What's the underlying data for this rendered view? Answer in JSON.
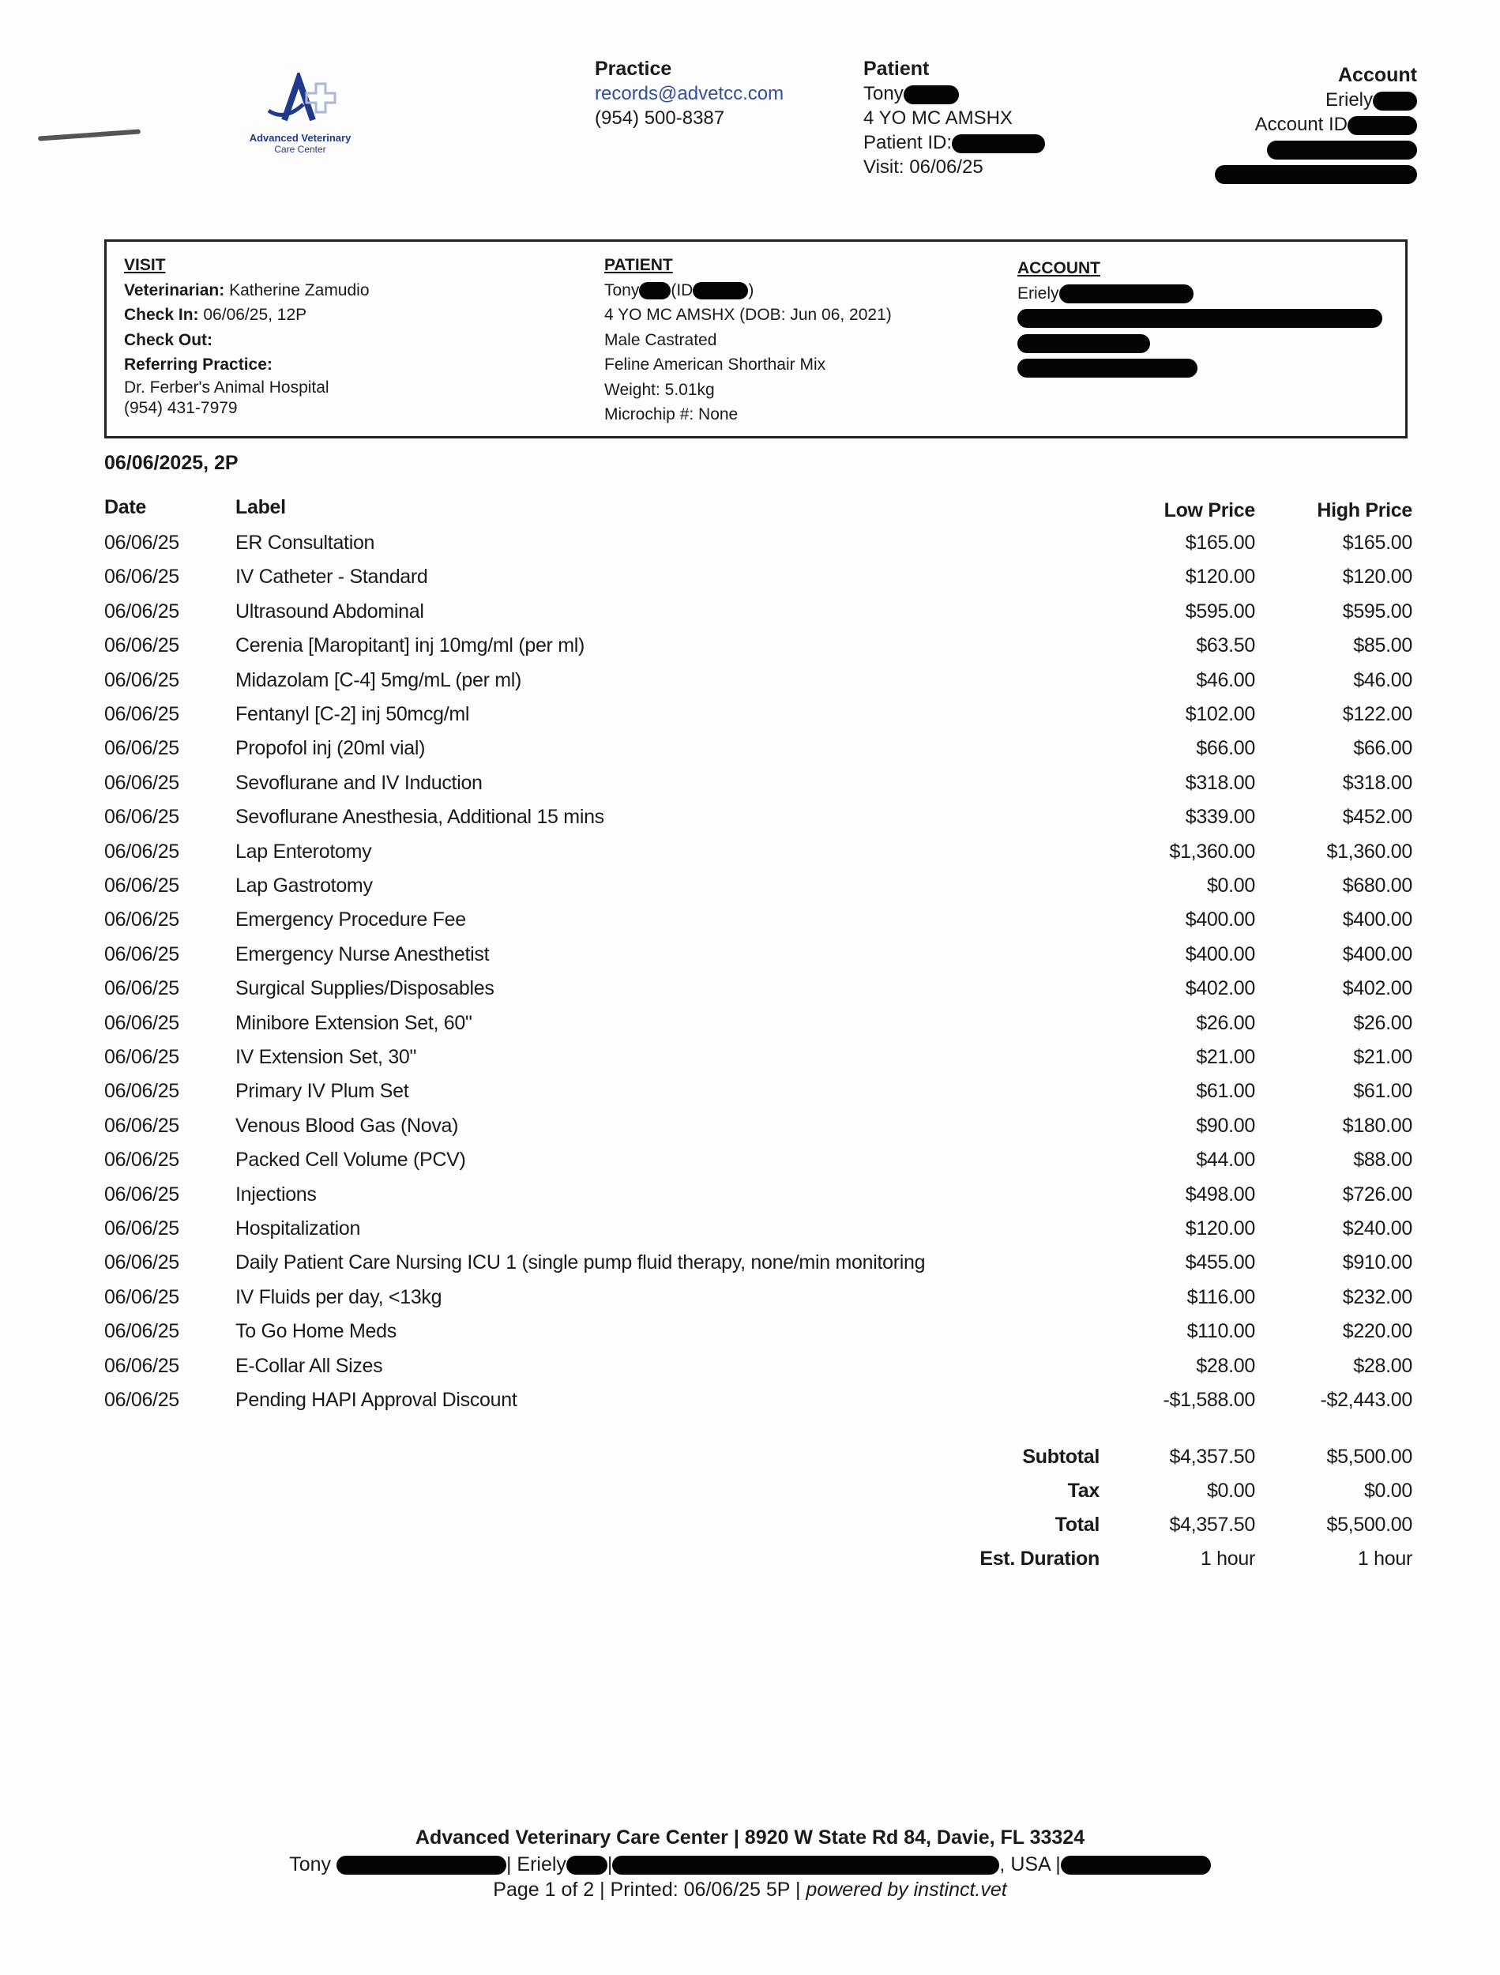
{
  "logo": {
    "name_line1": "Advanced Veterinary",
    "name_line2": "Care Center",
    "colors": {
      "primary": "#1f3a8a",
      "cross": "#a9b8d8"
    }
  },
  "header": {
    "practice": {
      "title": "Practice",
      "email": "records@advetcc.com",
      "phone": "(954) 500-8387"
    },
    "patient": {
      "title": "Patient",
      "name": "Tony",
      "summary": "4 YO MC AMSHX",
      "id_label": "Patient ID:",
      "visit": "Visit: 06/06/25"
    },
    "account": {
      "title": "Account",
      "name": "Eriely",
      "id_label": "Account ID"
    }
  },
  "info_box": {
    "visit": {
      "heading": "VISIT",
      "vet_label": "Veterinarian:",
      "vet": "Katherine Zamudio",
      "checkin_label": "Check In:",
      "checkin": "06/06/25, 12P",
      "checkout_label": "Check Out:",
      "referring_label": "Referring Practice:",
      "referring_name": "Dr. Ferber's Animal Hospital",
      "referring_phone": "(954) 431-7979"
    },
    "patient": {
      "heading": "PATIENT",
      "name": "Tony",
      "id_open": "(ID",
      "id_close": ")",
      "summary": "4 YO MC AMSHX (DOB: Jun 06, 2021)",
      "sex": "Male Castrated",
      "breed": "Feline American Shorthair Mix",
      "weight": "Weight: 5.01kg",
      "microchip": "Microchip #: None"
    },
    "account": {
      "heading": "ACCOUNT",
      "name": "Eriely"
    }
  },
  "estimate": {
    "date_heading": "06/06/2025, 2P",
    "columns": {
      "date": "Date",
      "label": "Label",
      "low": "Low Price",
      "high": "High Price"
    },
    "items": [
      {
        "date": "06/06/25",
        "label": "ER Consultation",
        "low": "$165.00",
        "high": "$165.00"
      },
      {
        "date": "06/06/25",
        "label": "IV Catheter - Standard",
        "low": "$120.00",
        "high": "$120.00"
      },
      {
        "date": "06/06/25",
        "label": "Ultrasound Abdominal",
        "low": "$595.00",
        "high": "$595.00"
      },
      {
        "date": "06/06/25",
        "label": "Cerenia [Maropitant] inj 10mg/ml (per ml)",
        "low": "$63.50",
        "high": "$85.00"
      },
      {
        "date": "06/06/25",
        "label": "Midazolam [C-4] 5mg/mL (per ml)",
        "low": "$46.00",
        "high": "$46.00"
      },
      {
        "date": "06/06/25",
        "label": "Fentanyl [C-2] inj 50mcg/ml",
        "low": "$102.00",
        "high": "$122.00"
      },
      {
        "date": "06/06/25",
        "label": "Propofol inj (20ml vial)",
        "low": "$66.00",
        "high": "$66.00"
      },
      {
        "date": "06/06/25",
        "label": "Sevoflurane and IV Induction",
        "low": "$318.00",
        "high": "$318.00"
      },
      {
        "date": "06/06/25",
        "label": "Sevoflurane Anesthesia, Additional 15 mins",
        "low": "$339.00",
        "high": "$452.00"
      },
      {
        "date": "06/06/25",
        "label": "Lap Enterotomy",
        "low": "$1,360.00",
        "high": "$1,360.00"
      },
      {
        "date": "06/06/25",
        "label": "Lap Gastrotomy",
        "low": "$0.00",
        "high": "$680.00"
      },
      {
        "date": "06/06/25",
        "label": "Emergency Procedure Fee",
        "low": "$400.00",
        "high": "$400.00"
      },
      {
        "date": "06/06/25",
        "label": "Emergency Nurse Anesthetist",
        "low": "$400.00",
        "high": "$400.00"
      },
      {
        "date": "06/06/25",
        "label": "Surgical Supplies/Disposables",
        "low": "$402.00",
        "high": "$402.00"
      },
      {
        "date": "06/06/25",
        "label": "Minibore Extension Set, 60\"",
        "low": "$26.00",
        "high": "$26.00"
      },
      {
        "date": "06/06/25",
        "label": "IV Extension Set, 30\"",
        "low": "$21.00",
        "high": "$21.00"
      },
      {
        "date": "06/06/25",
        "label": "Primary IV Plum Set",
        "low": "$61.00",
        "high": "$61.00"
      },
      {
        "date": "06/06/25",
        "label": "Venous Blood Gas (Nova)",
        "low": "$90.00",
        "high": "$180.00"
      },
      {
        "date": "06/06/25",
        "label": "Packed Cell Volume (PCV)",
        "low": "$44.00",
        "high": "$88.00"
      },
      {
        "date": "06/06/25",
        "label": "Injections",
        "low": "$498.00",
        "high": "$726.00"
      },
      {
        "date": "06/06/25",
        "label": "Hospitalization",
        "low": "$120.00",
        "high": "$240.00"
      },
      {
        "date": "06/06/25",
        "label": "Daily Patient Care Nursing ICU 1 (single pump fluid therapy, none/min monitoring",
        "low": "$455.00",
        "high": "$910.00"
      },
      {
        "date": "06/06/25",
        "label": "IV Fluids per day, <13kg",
        "low": "$116.00",
        "high": "$232.00"
      },
      {
        "date": "06/06/25",
        "label": "To Go Home Meds",
        "low": "$110.00",
        "high": "$220.00"
      },
      {
        "date": "06/06/25",
        "label": "E-Collar All Sizes",
        "low": "$28.00",
        "high": "$28.00"
      },
      {
        "date": "06/06/25",
        "label": "Pending HAPI Approval Discount",
        "low": "-$1,588.00",
        "high": "-$2,443.00"
      }
    ],
    "totals": [
      {
        "label": "Subtotal",
        "low": "$4,357.50",
        "high": "$5,500.00"
      },
      {
        "label": "Tax",
        "low": "$0.00",
        "high": "$0.00"
      },
      {
        "label": "Total",
        "low": "$4,357.50",
        "high": "$5,500.00"
      },
      {
        "label": "Est. Duration",
        "low": "1 hour",
        "high": "1 hour"
      }
    ]
  },
  "footer": {
    "address": "Advanced Veterinary Care Center | 8920 W State Rd 84, Davie, FL 33324",
    "client_name": "Tony",
    "client_sep1": "| Eriely",
    "client_sep2": "|",
    "client_country": ", USA |",
    "page_info": "Page 1 of 2 | Printed: 06/06/25 5P | ",
    "powered_by": "powered by instinct.vet"
  }
}
